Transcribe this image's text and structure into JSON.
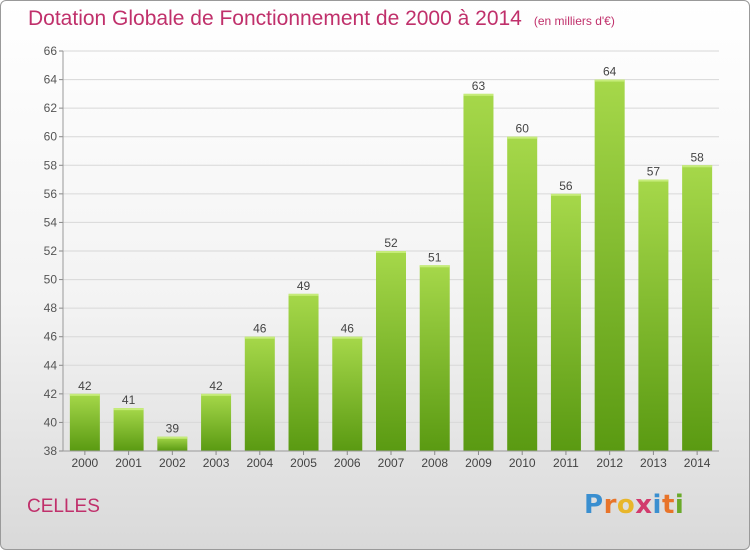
{
  "title": "Dotation Globale de Fonctionnement de 2000 à 2014",
  "unit_label": "(en milliers d'€)",
  "commune": "CELLES",
  "logo": {
    "text": "Proxiti",
    "letters": [
      "P",
      "r",
      "o",
      "x",
      "i",
      "t",
      "i"
    ],
    "colors": [
      "#3a8fd0",
      "#e8742a",
      "#e8b62a",
      "#d23a6c",
      "#3a8fd0",
      "#e8742a",
      "#6aaa2a"
    ]
  },
  "colors": {
    "title": "#c0306b",
    "bar_top": "#a6d84a",
    "bar_bottom": "#5a9a12",
    "grid": "#d8d8d8"
  },
  "chart_data": {
    "type": "bar",
    "title": "Dotation Globale de Fonctionnement de 2000 à 2014",
    "subtitle": "(en milliers d'€)",
    "xlabel": "",
    "ylabel": "",
    "categories": [
      "2000",
      "2001",
      "2002",
      "2003",
      "2004",
      "2005",
      "2006",
      "2007",
      "2008",
      "2009",
      "2010",
      "2011",
      "2012",
      "2013",
      "2014"
    ],
    "values": [
      42,
      41,
      39,
      42,
      46,
      49,
      46,
      52,
      51,
      63,
      60,
      56,
      64,
      57,
      58
    ],
    "ylim": [
      38,
      66
    ],
    "yticks": [
      38,
      40,
      42,
      44,
      46,
      48,
      50,
      52,
      54,
      56,
      58,
      60,
      62,
      64,
      66
    ],
    "grid": true,
    "legend": "none"
  }
}
